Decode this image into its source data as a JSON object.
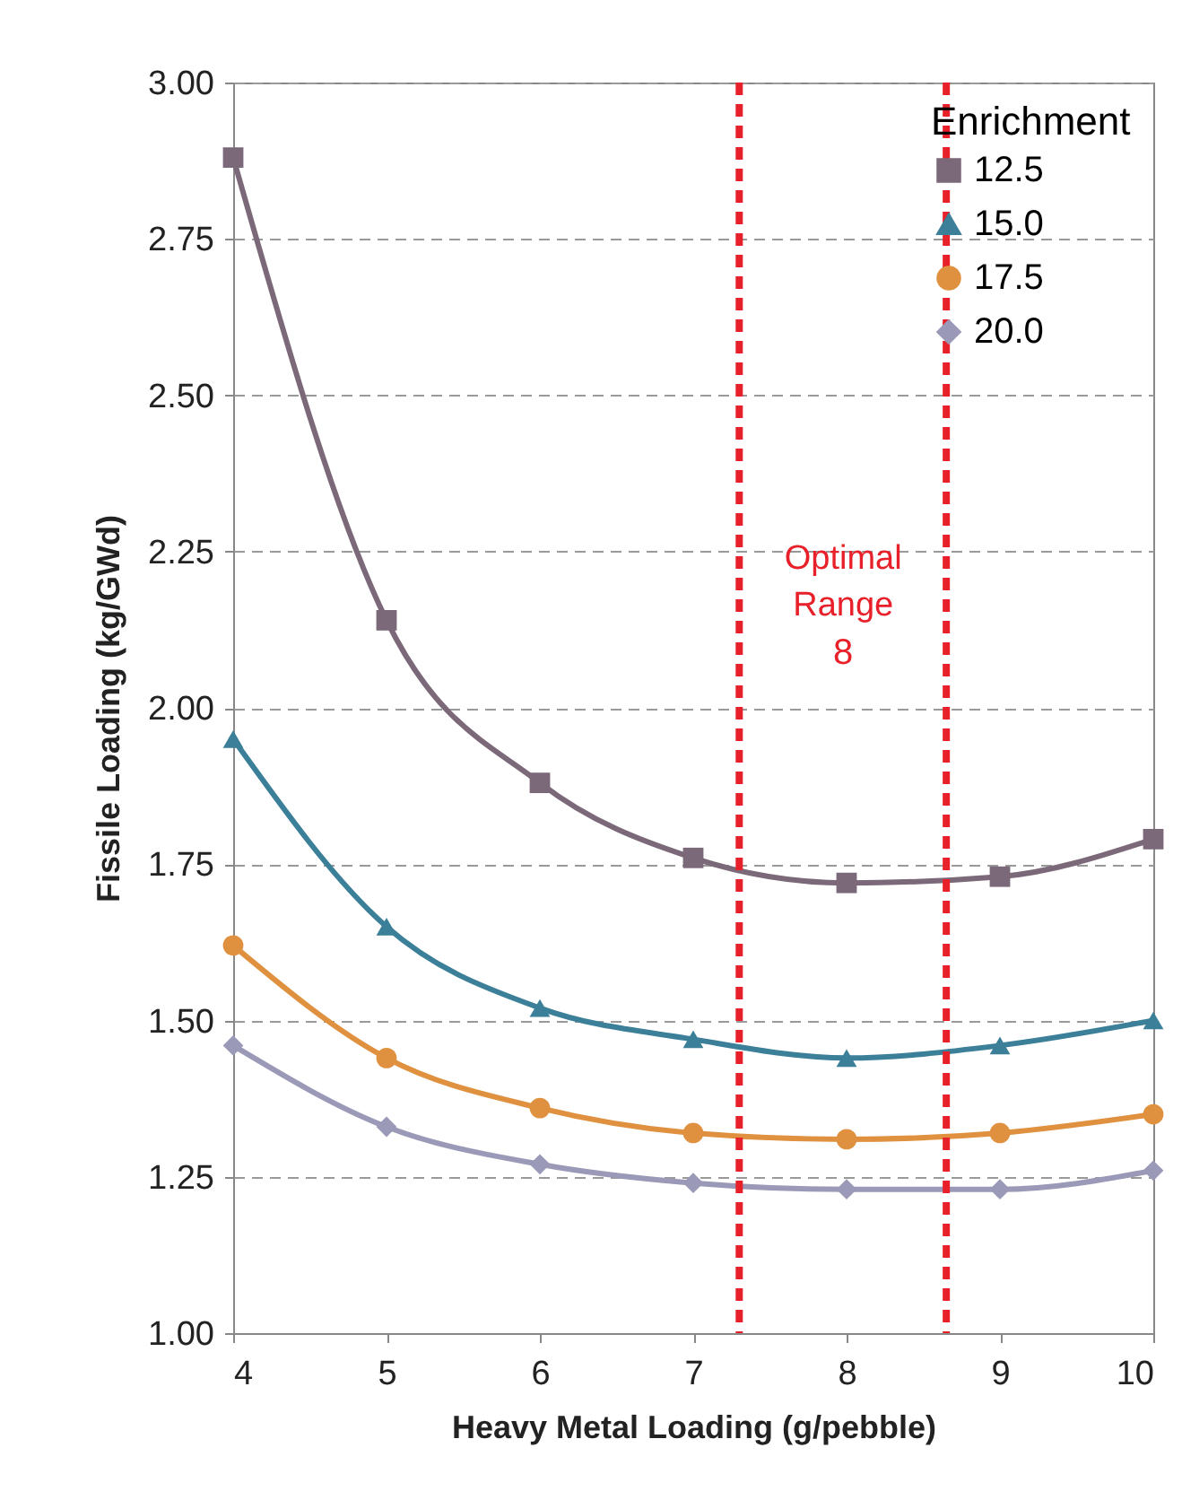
{
  "chart_data": {
    "type": "line",
    "xlabel": "Heavy Metal Loading (g/pebble)",
    "ylabel": "Fissile Loading (kg/GWd)",
    "legend_title": "Enrichment",
    "x": [
      4,
      5,
      6,
      7,
      8,
      9,
      10
    ],
    "series": [
      {
        "name": "12.5",
        "color": "#7b6878",
        "marker": "square",
        "values": [
          2.88,
          2.14,
          1.88,
          1.76,
          1.72,
          1.73,
          1.79
        ]
      },
      {
        "name": "15.0",
        "color": "#3b7f99",
        "marker": "triangle",
        "values": [
          1.95,
          1.65,
          1.52,
          1.47,
          1.44,
          1.46,
          1.5
        ]
      },
      {
        "name": "17.5",
        "color": "#e0913f",
        "marker": "circle",
        "values": [
          1.62,
          1.44,
          1.36,
          1.32,
          1.31,
          1.32,
          1.35
        ]
      },
      {
        "name": "20.0",
        "color": "#9a9ab8",
        "marker": "diamond",
        "values": [
          1.46,
          1.33,
          1.27,
          1.24,
          1.23,
          1.23,
          1.26
        ]
      }
    ],
    "xlim": [
      4,
      10
    ],
    "xticks": [
      4,
      5,
      6,
      7,
      8,
      9,
      10
    ],
    "ylim": [
      1,
      3
    ],
    "yticks": [
      {
        "value": 1,
        "label": "1.00"
      },
      {
        "value": 1.25,
        "label": "1.25"
      },
      {
        "value": 1.5,
        "label": "1.50"
      },
      {
        "value": 1.75,
        "label": "1.75"
      },
      {
        "value": 2,
        "label": "2.00"
      },
      {
        "value": 2.25,
        "label": "2.25"
      },
      {
        "value": 2.5,
        "label": "2.50"
      },
      {
        "value": 2.75,
        "label": "2.75"
      },
      {
        "value": 3,
        "label": "3.00"
      }
    ],
    "grid": "y",
    "legend": "top right",
    "line_style": "solid",
    "ref_lines": [
      {
        "axis": "x",
        "value": 7.3,
        "label": null,
        "color": "#e8202a",
        "line_style": "dashed"
      },
      {
        "axis": "x",
        "value": 8.65,
        "label": null,
        "color": "#e8202a",
        "line_style": "dashed"
      }
    ],
    "annotations": [
      "Optimal Range",
      "8"
    ]
  }
}
